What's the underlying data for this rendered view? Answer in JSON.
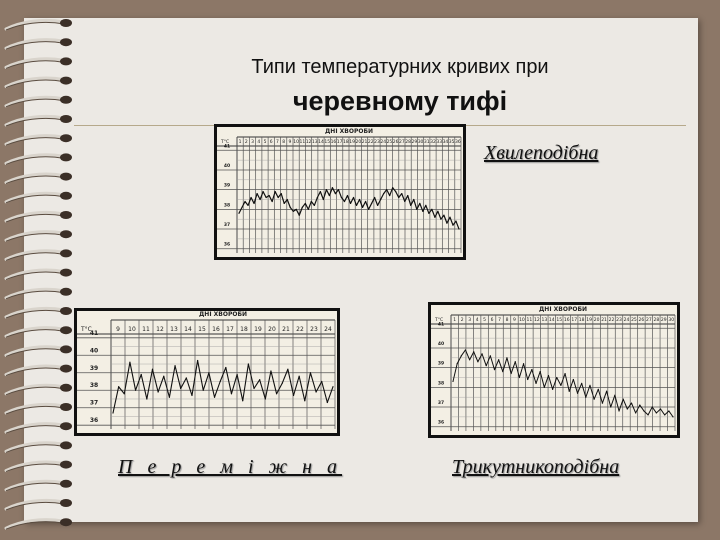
{
  "slide": {
    "title_line1": "Типи температурних кривих при",
    "title_line2": "черевному тифі",
    "labels": {
      "wave": "Хвилеподібна",
      "intermittent": "П е р е м і ж н а",
      "triangular": "Трикутникоподібна"
    },
    "colors": {
      "background": "#8c7767",
      "paper": "#ece9e4",
      "chart_paper": "#f3efe4",
      "chart_frame": "#111111"
    }
  },
  "chart_data": [
    {
      "type": "line",
      "name": "wave",
      "header": "ДНІ ХВОРОБИ",
      "y_unit": "T°C",
      "y_ticks": [
        "41",
        "40",
        "39",
        "38",
        "37",
        "36"
      ],
      "ylim": [
        36,
        41
      ],
      "x_ticks": [
        "1",
        "2",
        "3",
        "4",
        "5",
        "6",
        "7",
        "8",
        "9",
        "10",
        "11",
        "12",
        "13",
        "14",
        "15",
        "16",
        "17",
        "18",
        "19",
        "20",
        "21",
        "22",
        "23",
        "24",
        "25",
        "26",
        "27",
        "28",
        "29",
        "30",
        "31",
        "32",
        "33",
        "34",
        "35",
        "36"
      ],
      "values": [
        37.8,
        38.1,
        38.4,
        38.2,
        38.6,
        38.3,
        38.8,
        38.5,
        38.9,
        38.6,
        38.7,
        38.4,
        38.9,
        38.6,
        38.8,
        38.3,
        38.5,
        38.1,
        37.9,
        38.0,
        37.7,
        38.1,
        38.3,
        38.0,
        38.4,
        38.2,
        38.6,
        38.9,
        38.5,
        39.0,
        38.7,
        39.1,
        38.8,
        39.0,
        38.6,
        38.4,
        38.7,
        38.3,
        38.6,
        38.2,
        38.5,
        38.1,
        38.4,
        38.0,
        38.3,
        38.6,
        38.2,
        38.5,
        38.8,
        39.0,
        38.7,
        39.1,
        38.9,
        38.6,
        38.8,
        38.4,
        38.7,
        38.2,
        38.5,
        38.0,
        38.3,
        37.9,
        38.2,
        37.8,
        38.0,
        37.6,
        37.9,
        37.5,
        37.7,
        37.3,
        37.6,
        37.2,
        37.4,
        37.0
      ]
    },
    {
      "type": "line",
      "name": "intermittent",
      "header": "ДНІ ХВОРОБИ",
      "y_unit": "T°C",
      "y_ticks": [
        "41",
        "40",
        "39",
        "38",
        "37",
        "36"
      ],
      "ylim": [
        36,
        41
      ],
      "x_ticks": [
        "9",
        "10",
        "11",
        "12",
        "13",
        "14",
        "15",
        "16",
        "17",
        "18",
        "19",
        "20",
        "21",
        "22",
        "23",
        "24"
      ],
      "values": [
        36.7,
        38.2,
        37.8,
        39.6,
        38.0,
        38.9,
        37.5,
        39.2,
        37.9,
        38.8,
        37.6,
        39.4,
        38.1,
        38.7,
        37.7,
        39.7,
        38.0,
        39.0,
        37.6,
        38.5,
        39.3,
        37.8,
        38.9,
        37.4,
        39.5,
        38.1,
        38.6,
        37.5,
        39.1,
        37.8,
        38.4,
        39.2,
        37.7,
        38.8,
        37.4,
        39.0,
        37.9,
        38.5,
        37.3,
        38.2
      ]
    },
    {
      "type": "line",
      "name": "triangular",
      "header": "ДНІ ХВОРОБИ",
      "y_unit": "T°C",
      "y_ticks": [
        "41",
        "40",
        "39",
        "38",
        "37",
        "36"
      ],
      "ylim": [
        36,
        41
      ],
      "x_ticks": [
        "1",
        "2",
        "3",
        "4",
        "5",
        "6",
        "7",
        "8",
        "9",
        "10",
        "11",
        "12",
        "13",
        "14",
        "15",
        "16",
        "17",
        "18",
        "19",
        "20",
        "21",
        "22",
        "23",
        "24",
        "25",
        "26",
        "27",
        "28",
        "29",
        "30"
      ],
      "values": [
        38.3,
        39.2,
        39.6,
        39.9,
        39.4,
        39.8,
        39.3,
        39.7,
        39.1,
        39.6,
        38.9,
        39.4,
        38.8,
        39.5,
        38.7,
        39.3,
        38.5,
        39.2,
        38.4,
        38.9,
        38.2,
        38.8,
        38.0,
        38.6,
        37.9,
        38.5,
        38.1,
        38.7,
        37.8,
        38.4,
        37.7,
        38.2,
        37.5,
        38.1,
        37.4,
        37.9,
        37.2,
        37.8,
        37.0,
        37.6,
        36.8,
        37.4,
        36.9,
        37.2,
        36.7,
        37.1,
        36.8,
        36.6,
        37.0,
        36.7,
        36.9,
        36.6,
        36.8,
        36.5
      ]
    }
  ]
}
